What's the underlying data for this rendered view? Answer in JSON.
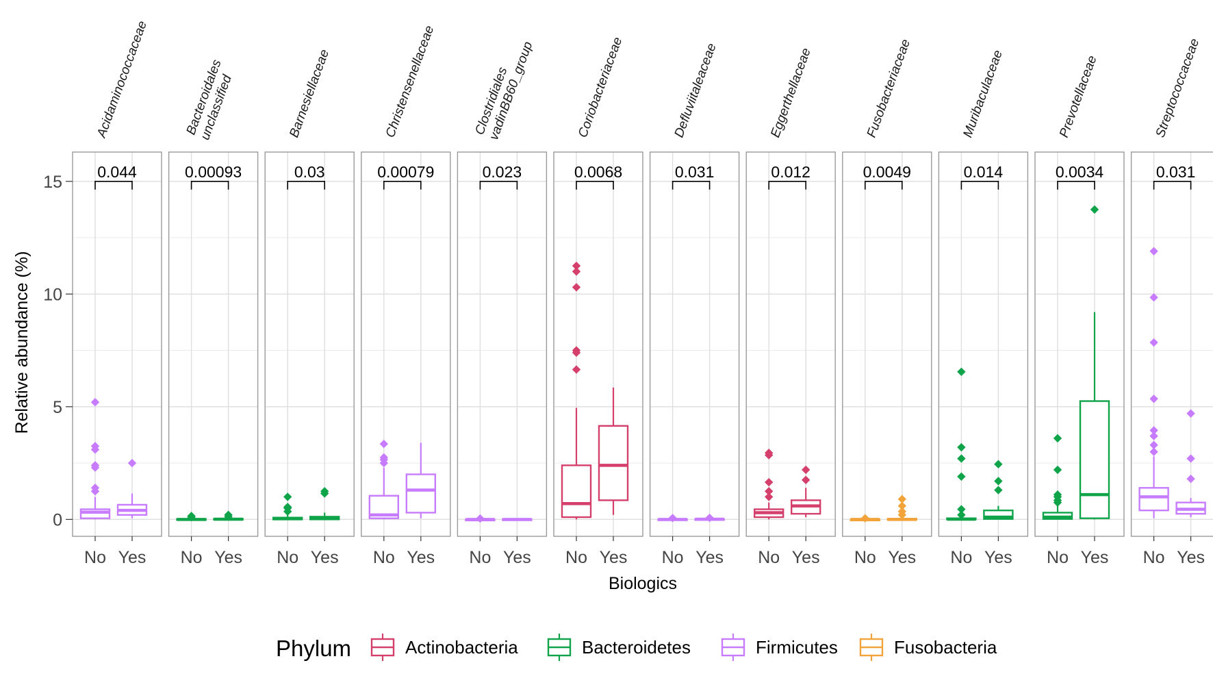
{
  "chart_data": {
    "type": "box",
    "y_label": "Relative abundance (%)",
    "x_label": "Biologics",
    "categories": [
      "No",
      "Yes"
    ],
    "y_axis": {
      "range": [
        -0.75,
        16.3
      ],
      "ticks": [
        "0",
        "5",
        "10",
        "15"
      ],
      "tick_values": [
        0,
        5,
        10,
        15
      ]
    },
    "legend": {
      "title": "Phylum",
      "position": "bottom",
      "items": [
        {
          "label": "Actinobacteria",
          "color": "#d43f6c"
        },
        {
          "label": "Bacteroidetes",
          "color": "#0fa44a"
        },
        {
          "label": "Firmicutes",
          "color": "#c77cff"
        },
        {
          "label": "Fusobacteria",
          "color": "#f2a33a"
        }
      ]
    },
    "panels": [
      {
        "title": "Acidaminococcaceae",
        "phylum": "Firmicutes",
        "p_value": "0.044",
        "boxes": [
          {
            "group": "No",
            "q1": 0.05,
            "median": 0.32,
            "q3": 0.45,
            "whisker_low": 0.0,
            "whisker_high": 1.0,
            "outliers": [
              1.25,
              1.4,
              2.3,
              2.4,
              3.1,
              3.25,
              5.2
            ]
          },
          {
            "group": "Yes",
            "q1": 0.2,
            "median": 0.4,
            "q3": 0.65,
            "whisker_low": 0.05,
            "whisker_high": 1.15,
            "outliers": [
              2.5
            ]
          }
        ]
      },
      {
        "title": "Bacteroidales unclassified",
        "phylum": "Bacteroidetes",
        "p_value": "0.00093",
        "boxes": [
          {
            "group": "No",
            "q1": 0.0,
            "median": 0.0,
            "q3": 0.02,
            "whisker_low": 0.0,
            "whisker_high": 0.05,
            "outliers": [
              0.1,
              0.15
            ]
          },
          {
            "group": "Yes",
            "q1": 0.0,
            "median": 0.01,
            "q3": 0.03,
            "whisker_low": 0.0,
            "whisker_high": 0.07,
            "outliers": [
              0.12,
              0.2
            ]
          }
        ]
      },
      {
        "title": "Barnesiellaceae",
        "phylum": "Bacteroidetes",
        "p_value": "0.03",
        "boxes": [
          {
            "group": "No",
            "q1": 0.0,
            "median": 0.03,
            "q3": 0.08,
            "whisker_low": 0.0,
            "whisker_high": 0.2,
            "outliers": [
              0.35,
              0.5,
              0.55,
              1.0
            ]
          },
          {
            "group": "Yes",
            "q1": 0.0,
            "median": 0.05,
            "q3": 0.12,
            "whisker_low": 0.0,
            "whisker_high": 0.3,
            "outliers": [
              1.15,
              1.25
            ]
          }
        ]
      },
      {
        "title": "Christensenellaceae",
        "phylum": "Firmicutes",
        "p_value": "0.00079",
        "boxes": [
          {
            "group": "No",
            "q1": 0.05,
            "median": 0.2,
            "q3": 1.05,
            "whisker_low": 0.0,
            "whisker_high": 2.3,
            "outliers": [
              2.5,
              2.65,
              2.75,
              3.35
            ]
          },
          {
            "group": "Yes",
            "q1": 0.3,
            "median": 1.3,
            "q3": 2.0,
            "whisker_low": 0.05,
            "whisker_high": 3.4,
            "outliers": []
          }
        ]
      },
      {
        "title": "Clostridiales vadinBB60_group",
        "phylum": "Firmicutes",
        "p_value": "0.023",
        "boxes": [
          {
            "group": "No",
            "q1": 0.0,
            "median": 0.0,
            "q3": 0.0,
            "whisker_low": 0.0,
            "whisker_high": 0.02,
            "outliers": [
              0.04
            ]
          },
          {
            "group": "Yes",
            "q1": 0.0,
            "median": 0.0,
            "q3": 0.01,
            "whisker_low": 0.0,
            "whisker_high": 0.03,
            "outliers": []
          }
        ]
      },
      {
        "title": "Coriobacteriaceae",
        "phylum": "Actinobacteria",
        "p_value": "0.0068",
        "boxes": [
          {
            "group": "No",
            "q1": 0.1,
            "median": 0.7,
            "q3": 2.4,
            "whisker_low": 0.0,
            "whisker_high": 4.95,
            "outliers": [
              6.65,
              7.4,
              7.5,
              10.3,
              11.0,
              11.25
            ]
          },
          {
            "group": "Yes",
            "q1": 0.85,
            "median": 2.4,
            "q3": 4.15,
            "whisker_low": 0.2,
            "whisker_high": 5.85,
            "outliers": []
          }
        ]
      },
      {
        "title": "Defluviitaleaceae",
        "phylum": "Firmicutes",
        "p_value": "0.031",
        "boxes": [
          {
            "group": "No",
            "q1": 0.0,
            "median": 0.0,
            "q3": 0.01,
            "whisker_low": 0.0,
            "whisker_high": 0.03,
            "outliers": [
              0.06
            ]
          },
          {
            "group": "Yes",
            "q1": 0.0,
            "median": 0.01,
            "q3": 0.02,
            "whisker_low": 0.0,
            "whisker_high": 0.04,
            "outliers": [
              0.07
            ]
          }
        ]
      },
      {
        "title": "Eggerthellaceae",
        "phylum": "Actinobacteria",
        "p_value": "0.012",
        "boxes": [
          {
            "group": "No",
            "q1": 0.1,
            "median": 0.3,
            "q3": 0.45,
            "whisker_low": 0.0,
            "whisker_high": 0.75,
            "outliers": [
              1.0,
              1.25,
              1.65,
              2.85,
              2.95
            ]
          },
          {
            "group": "Yes",
            "q1": 0.25,
            "median": 0.6,
            "q3": 0.85,
            "whisker_low": 0.1,
            "whisker_high": 1.4,
            "outliers": [
              1.75,
              2.2
            ]
          }
        ]
      },
      {
        "title": "Fusobacteriaceae",
        "phylum": "Fusobacteria",
        "p_value": "0.0049",
        "boxes": [
          {
            "group": "No",
            "q1": 0.0,
            "median": 0.0,
            "q3": 0.0,
            "whisker_low": 0.0,
            "whisker_high": 0.02,
            "outliers": [
              0.05
            ]
          },
          {
            "group": "Yes",
            "q1": 0.0,
            "median": 0.0,
            "q3": 0.03,
            "whisker_low": 0.0,
            "whisker_high": 0.08,
            "outliers": [
              0.2,
              0.35,
              0.6,
              0.9
            ]
          }
        ]
      },
      {
        "title": "Muribaculaceae",
        "phylum": "Bacteroidetes",
        "p_value": "0.014",
        "boxes": [
          {
            "group": "No",
            "q1": 0.0,
            "median": 0.01,
            "q3": 0.05,
            "whisker_low": 0.0,
            "whisker_high": 0.12,
            "outliers": [
              0.2,
              0.45,
              1.9,
              2.7,
              3.2,
              6.55
            ]
          },
          {
            "group": "Yes",
            "q1": 0.02,
            "median": 0.1,
            "q3": 0.4,
            "whisker_low": 0.0,
            "whisker_high": 0.6,
            "outliers": [
              1.3,
              1.7,
              2.45
            ]
          }
        ]
      },
      {
        "title": "Prevotellaceae",
        "phylum": "Bacteroidetes",
        "p_value": "0.0034",
        "boxes": [
          {
            "group": "No",
            "q1": 0.02,
            "median": 0.1,
            "q3": 0.3,
            "whisker_low": 0.0,
            "whisker_high": 0.6,
            "outliers": [
              0.75,
              0.85,
              1.0,
              1.1,
              2.2,
              3.6
            ]
          },
          {
            "group": "Yes",
            "q1": 0.05,
            "median": 1.1,
            "q3": 5.25,
            "whisker_low": 0.0,
            "whisker_high": 9.2,
            "outliers": [
              13.75
            ]
          }
        ]
      },
      {
        "title": "Streptococcaceae",
        "phylum": "Firmicutes",
        "p_value": "0.031",
        "boxes": [
          {
            "group": "No",
            "q1": 0.4,
            "median": 1.0,
            "q3": 1.4,
            "whisker_low": 0.05,
            "whisker_high": 2.8,
            "outliers": [
              3.0,
              3.3,
              3.7,
              3.95,
              5.35,
              7.85,
              9.85,
              11.9
            ]
          },
          {
            "group": "Yes",
            "q1": 0.25,
            "median": 0.45,
            "q3": 0.75,
            "whisker_low": 0.1,
            "whisker_high": 0.95,
            "outliers": [
              1.8,
              2.7,
              4.7
            ]
          }
        ]
      }
    ]
  }
}
